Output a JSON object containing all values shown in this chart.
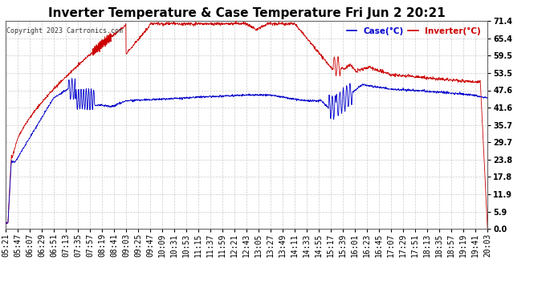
{
  "title": "Inverter Temperature & Case Temperature Fri Jun 2 20:21",
  "copyright": "Copyright 2023 Cartronics.com",
  "legend_case": "Case(°C)",
  "legend_inverter": "Inverter(°C)",
  "yticks": [
    0.0,
    5.9,
    11.9,
    17.8,
    23.8,
    29.7,
    35.7,
    41.6,
    47.6,
    53.5,
    59.5,
    65.4,
    71.4
  ],
  "ylim": [
    0.0,
    71.4
  ],
  "bg_color": "#ffffff",
  "plot_bg": "#ffffff",
  "title_color": "#000000",
  "case_color": "#0000cc",
  "inverter_color": "#cc0000",
  "grid_color": "#cccccc",
  "title_fontsize": 11,
  "tick_fontsize": 7,
  "n_points": 1800,
  "xtick_labels": [
    "05:21",
    "05:47",
    "06:07",
    "06:29",
    "06:51",
    "07:13",
    "07:35",
    "07:57",
    "08:19",
    "08:41",
    "09:03",
    "09:25",
    "09:47",
    "10:09",
    "10:31",
    "10:53",
    "11:15",
    "11:37",
    "11:59",
    "12:21",
    "12:43",
    "13:05",
    "13:27",
    "13:49",
    "14:11",
    "14:33",
    "14:55",
    "15:17",
    "15:39",
    "16:01",
    "16:23",
    "16:45",
    "17:07",
    "17:29",
    "17:51",
    "18:13",
    "18:35",
    "18:57",
    "19:19",
    "19:41",
    "20:03"
  ]
}
